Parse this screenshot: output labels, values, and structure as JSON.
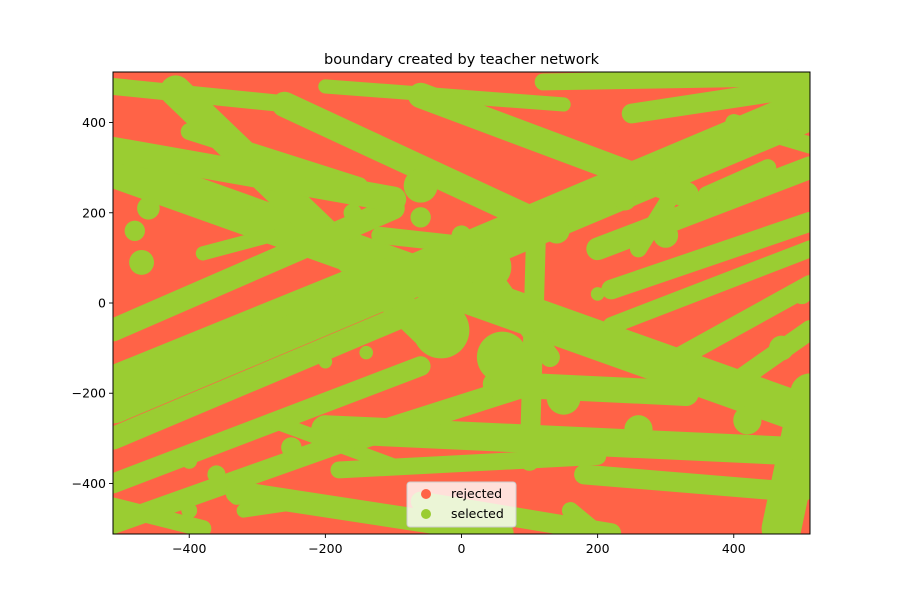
{
  "chart_data": {
    "type": "scatter",
    "title": "boundary created by teacher network",
    "xlabel": "",
    "ylabel": "",
    "xlim": [
      -512,
      512
    ],
    "ylim": [
      -512,
      512
    ],
    "xticks": [
      -400,
      -200,
      0,
      200,
      400
    ],
    "yticks": [
      -400,
      -200,
      0,
      200,
      400
    ],
    "grid": false,
    "legend_position": "bottom-center",
    "series": [
      {
        "name": "rejected",
        "color": "#ff6347"
      },
      {
        "name": "selected",
        "color": "#9acd32"
      }
    ],
    "selected_bands": [
      {
        "x1": -512,
        "y1": 300,
        "x2": 512,
        "y2": -250,
        "w": 70
      },
      {
        "x1": -512,
        "y1": -220,
        "x2": 512,
        "y2": 430,
        "w": 75
      },
      {
        "x1": -420,
        "y1": 470,
        "x2": -40,
        "y2": -80,
        "w": 55
      },
      {
        "x1": -512,
        "y1": -60,
        "x2": -100,
        "y2": 210,
        "w": 40
      },
      {
        "x1": -512,
        "y1": -160,
        "x2": -120,
        "y2": 80,
        "w": 35
      },
      {
        "x1": -512,
        "y1": -300,
        "x2": -40,
        "y2": 0,
        "w": 40
      },
      {
        "x1": -512,
        "y1": -400,
        "x2": -60,
        "y2": -140,
        "w": 35
      },
      {
        "x1": -512,
        "y1": -490,
        "x2": -120,
        "y2": -280,
        "w": 35
      },
      {
        "x1": -512,
        "y1": 340,
        "x2": -100,
        "y2": 230,
        "w": 45
      },
      {
        "x1": -512,
        "y1": 480,
        "x2": -250,
        "y2": 440,
        "w": 30
      },
      {
        "x1": -400,
        "y1": 380,
        "x2": -150,
        "y2": 260,
        "w": 30
      },
      {
        "x1": -260,
        "y1": 440,
        "x2": 140,
        "y2": 160,
        "w": 45
      },
      {
        "x1": -200,
        "y1": 480,
        "x2": 150,
        "y2": 440,
        "w": 25
      },
      {
        "x1": -60,
        "y1": 460,
        "x2": 330,
        "y2": 240,
        "w": 45
      },
      {
        "x1": 120,
        "y1": 490,
        "x2": 512,
        "y2": 500,
        "w": 30
      },
      {
        "x1": 250,
        "y1": 420,
        "x2": 512,
        "y2": 480,
        "w": 35
      },
      {
        "x1": 200,
        "y1": 120,
        "x2": 512,
        "y2": 300,
        "w": 40
      },
      {
        "x1": 220,
        "y1": 30,
        "x2": 512,
        "y2": 180,
        "w": 35
      },
      {
        "x1": 220,
        "y1": -50,
        "x2": 512,
        "y2": 120,
        "w": 30
      },
      {
        "x1": 320,
        "y1": -120,
        "x2": 512,
        "y2": 40,
        "w": 35
      },
      {
        "x1": 380,
        "y1": -200,
        "x2": 512,
        "y2": -60,
        "w": 35
      },
      {
        "x1": 470,
        "y1": -500,
        "x2": 512,
        "y2": -200,
        "w": 70
      },
      {
        "x1": -200,
        "y1": -280,
        "x2": 512,
        "y2": -330,
        "w": 50
      },
      {
        "x1": -180,
        "y1": -370,
        "x2": 200,
        "y2": -340,
        "w": 30
      },
      {
        "x1": 180,
        "y1": -380,
        "x2": 500,
        "y2": -420,
        "w": 35
      },
      {
        "x1": -60,
        "y1": -440,
        "x2": 220,
        "y2": -510,
        "w": 35
      },
      {
        "x1": -330,
        "y1": -420,
        "x2": 60,
        "y2": -510,
        "w": 40
      },
      {
        "x1": -280,
        "y1": -260,
        "x2": -100,
        "y2": -360,
        "w": 25
      },
      {
        "x1": -150,
        "y1": -300,
        "x2": 100,
        "y2": -180,
        "w": 40
      },
      {
        "x1": 50,
        "y1": -180,
        "x2": 330,
        "y2": -200,
        "w": 45
      },
      {
        "x1": 0,
        "y1": 150,
        "x2": 130,
        "y2": -120,
        "w": 35
      },
      {
        "x1": 110,
        "y1": 180,
        "x2": 100,
        "y2": -350,
        "w": 35
      },
      {
        "x1": 330,
        "y1": 290,
        "x2": 260,
        "y2": 120,
        "w": 30
      },
      {
        "x1": 360,
        "y1": 240,
        "x2": 450,
        "y2": 300,
        "w": 30
      },
      {
        "x1": -512,
        "y1": -450,
        "x2": -380,
        "y2": -500,
        "w": 30
      },
      {
        "x1": -320,
        "y1": -460,
        "x2": -230,
        "y2": -440,
        "w": 25
      },
      {
        "x1": -380,
        "y1": 110,
        "x2": -280,
        "y2": 150,
        "w": 25
      },
      {
        "x1": -120,
        "y1": 150,
        "x2": 60,
        "y2": 120,
        "w": 30
      },
      {
        "x1": 400,
        "y1": 400,
        "x2": 512,
        "y2": 350,
        "w": 30
      },
      {
        "x1": 160,
        "y1": -460,
        "x2": 200,
        "y2": -510,
        "w": 30
      }
    ],
    "selected_blobs": [
      {
        "x": -470,
        "y": 90,
        "r": 22
      },
      {
        "x": -300,
        "y": 200,
        "r": 18
      },
      {
        "x": -160,
        "y": 200,
        "r": 16
      },
      {
        "x": -120,
        "y": 150,
        "r": 14
      },
      {
        "x": -400,
        "y": -350,
        "r": 14
      },
      {
        "x": -360,
        "y": -380,
        "r": 16
      },
      {
        "x": -330,
        "y": -430,
        "r": 14
      },
      {
        "x": -400,
        "y": -460,
        "r": 14
      },
      {
        "x": -200,
        "y": -130,
        "r": 12
      },
      {
        "x": -140,
        "y": -110,
        "r": 12
      },
      {
        "x": 200,
        "y": 20,
        "r": 12
      },
      {
        "x": 350,
        "y": 220,
        "r": 18
      },
      {
        "x": 410,
        "y": 260,
        "r": 18
      },
      {
        "x": 490,
        "y": -320,
        "r": 22
      },
      {
        "x": -60,
        "y": 260,
        "r": 30
      },
      {
        "x": 40,
        "y": 80,
        "r": 40
      },
      {
        "x": -30,
        "y": -60,
        "r": 50
      },
      {
        "x": 60,
        "y": -120,
        "r": 45
      },
      {
        "x": 150,
        "y": -210,
        "r": 30
      },
      {
        "x": 30,
        "y": -300,
        "r": 20
      },
      {
        "x": -60,
        "y": 190,
        "r": 18
      },
      {
        "x": -460,
        "y": 210,
        "r": 20
      },
      {
        "x": -480,
        "y": 160,
        "r": 18
      },
      {
        "x": 470,
        "y": -100,
        "r": 22
      },
      {
        "x": 500,
        "y": 20,
        "r": 18
      },
      {
        "x": 240,
        "y": 230,
        "r": 20
      },
      {
        "x": 300,
        "y": 150,
        "r": 22
      },
      {
        "x": 260,
        "y": -280,
        "r": 25
      },
      {
        "x": 420,
        "y": -260,
        "r": 25
      },
      {
        "x": -250,
        "y": -320,
        "r": 18
      }
    ]
  }
}
